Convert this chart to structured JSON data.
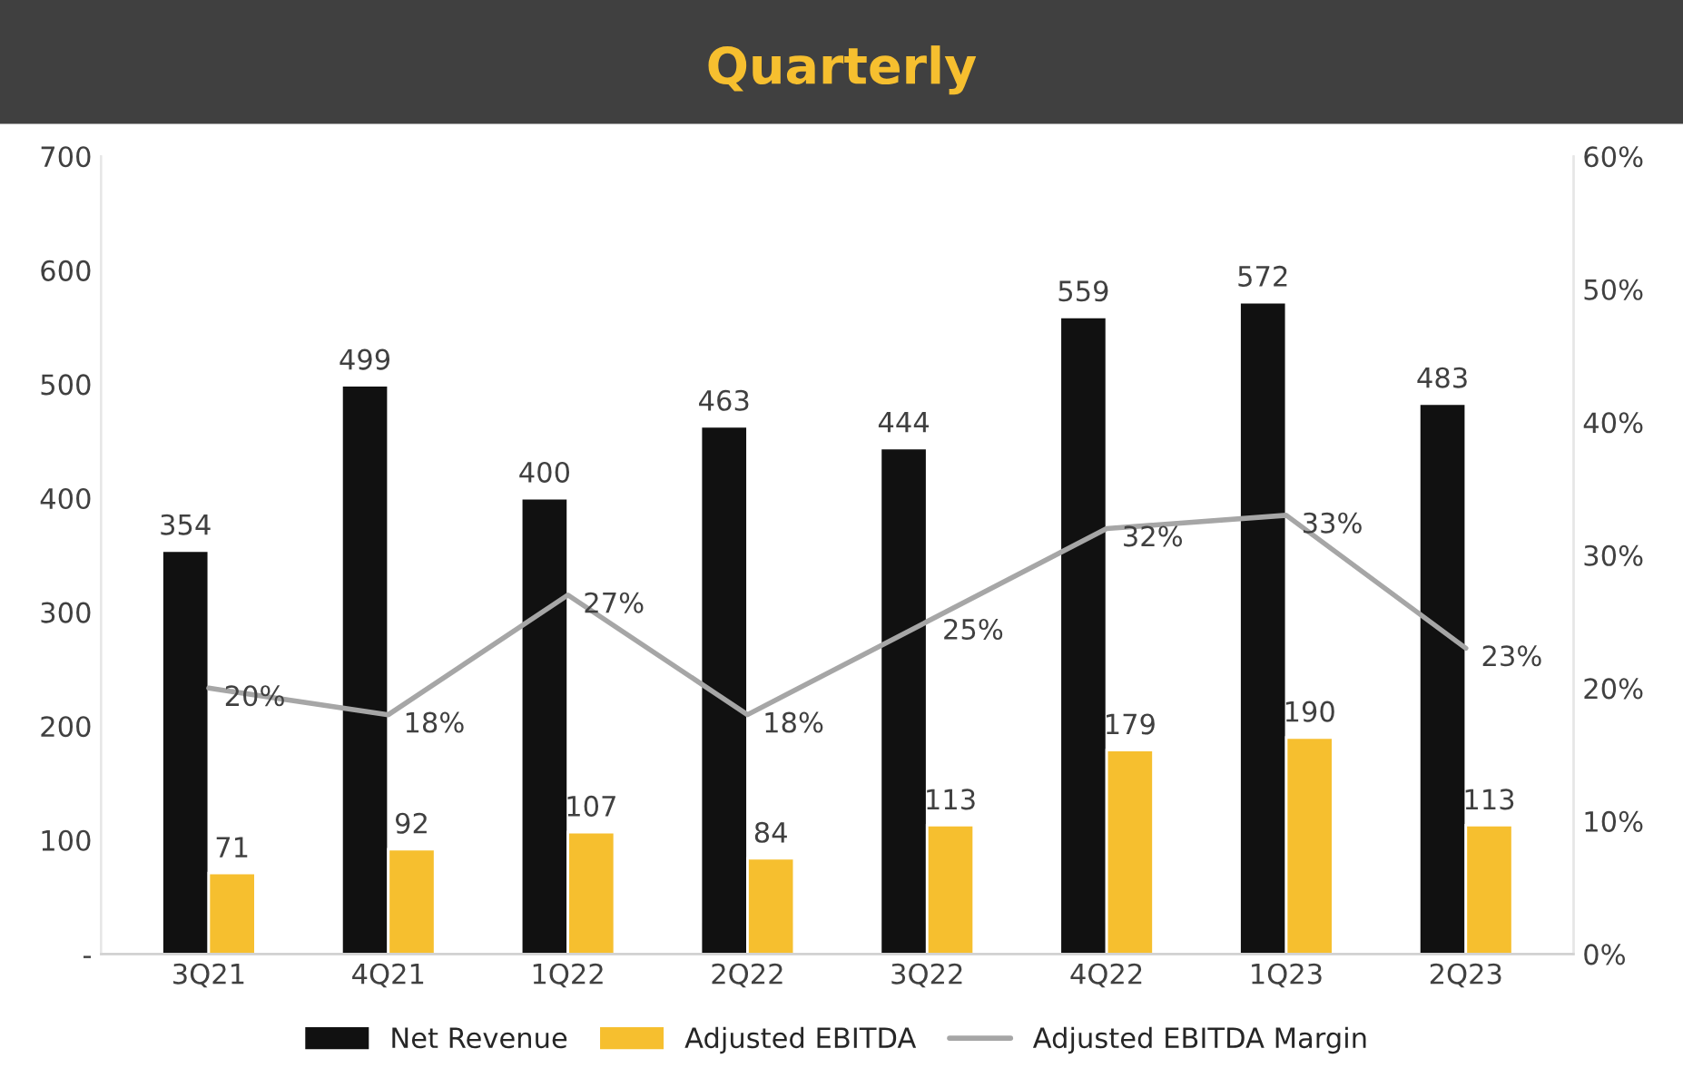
{
  "chart_data": {
    "type": "bar",
    "title": "Quarterly",
    "categories": [
      "3Q21",
      "4Q21",
      "1Q22",
      "2Q22",
      "3Q22",
      "4Q22",
      "1Q23",
      "2Q23"
    ],
    "series": [
      {
        "name": "Net Revenue",
        "color": "#111111",
        "values": [
          354,
          499,
          400,
          463,
          444,
          559,
          572,
          483
        ]
      },
      {
        "name": "Adjusted EBITDA",
        "color": "#f6bf2f",
        "values": [
          71,
          92,
          107,
          84,
          113,
          179,
          190,
          113
        ]
      },
      {
        "name": "Adjusted EBITDA Margin",
        "type": "line",
        "axis": "y2",
        "color": "#a6a6a6",
        "values": [
          20,
          18,
          27,
          18,
          25,
          32,
          33,
          23
        ],
        "value_labels": [
          "20%",
          "18%",
          "27%",
          "18%",
          "25%",
          "32%",
          "33%",
          "23%"
        ]
      }
    ],
    "ylim": [
      0,
      700
    ],
    "yticks": [
      {
        "value": 0,
        "label": "-"
      },
      100,
      200,
      300,
      400,
      500,
      600,
      700
    ],
    "y2lim": [
      0,
      60
    ],
    "y2ticks": [
      {
        "value": 0,
        "label": "0%"
      },
      {
        "value": 10,
        "label": "10%"
      },
      {
        "value": 20,
        "label": "20%"
      },
      {
        "value": 30,
        "label": "30%"
      },
      {
        "value": 40,
        "label": "40%"
      },
      {
        "value": 50,
        "label": "50%"
      },
      {
        "value": 60,
        "label": "60%"
      }
    ],
    "data_labels": true,
    "grid": false,
    "legend": "bottom",
    "marker": "none",
    "line_style": "solid"
  }
}
